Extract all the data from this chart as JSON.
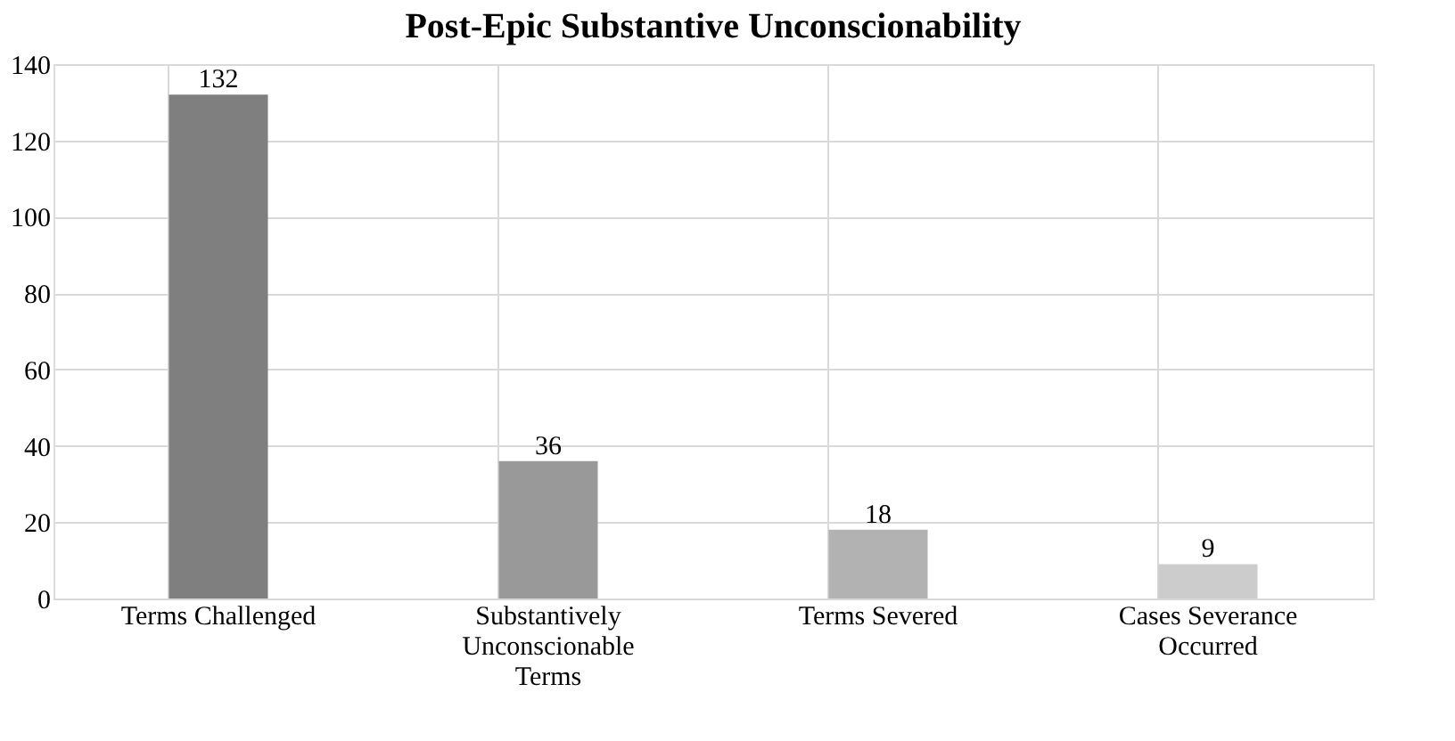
{
  "chart_data": {
    "type": "bar",
    "title": "Post-Epic Substantive Unconscionability",
    "categories": [
      "Terms Challenged",
      "Substantively Unconscionable Terms",
      "Terms Severed",
      "Cases Severance Occurred"
    ],
    "values": [
      132,
      36,
      18,
      9
    ],
    "colors": [
      "#7f7f7f",
      "#999999",
      "#b2b2b2",
      "#cccccc"
    ],
    "ylim": [
      0,
      140
    ],
    "yticks": [
      0,
      20,
      40,
      60,
      80,
      100,
      120,
      140
    ],
    "grid": true,
    "data_labels": true
  }
}
